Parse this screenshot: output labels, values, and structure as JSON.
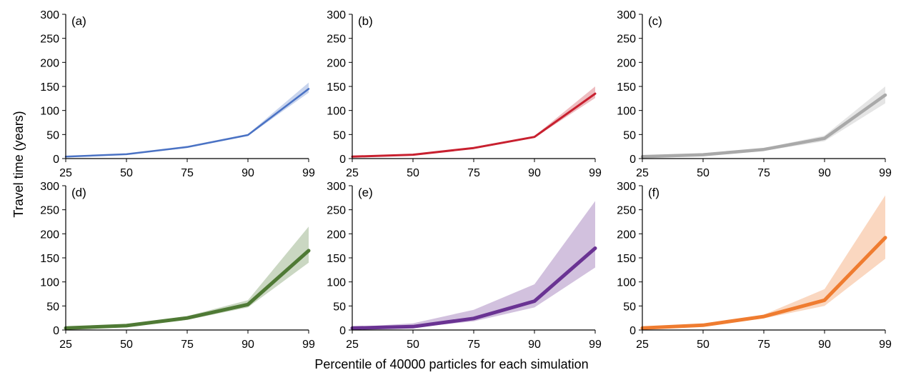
{
  "figure": {
    "ylabel": "Travel time (years)",
    "xlabel": "Percentile of 40000 particles for each simulation"
  },
  "chart_data": [
    {
      "type": "line",
      "panel": "(a)",
      "categories": [
        "25",
        "50",
        "75",
        "90",
        "99"
      ],
      "ylim": [
        0,
        300
      ],
      "yticks": [
        0,
        50,
        100,
        150,
        200,
        250,
        300
      ],
      "color": "#4a72c4",
      "series": [
        {
          "values": [
            4,
            9,
            24,
            49,
            145
          ]
        }
      ],
      "band_lower": [
        3,
        8,
        22,
        47,
        137
      ],
      "band_upper": [
        5,
        10,
        26,
        51,
        158
      ],
      "line_width": 2.5
    },
    {
      "type": "line",
      "panel": "(b)",
      "categories": [
        "25",
        "50",
        "75",
        "90",
        "99"
      ],
      "ylim": [
        0,
        300
      ],
      "yticks": [
        0,
        50,
        100,
        150,
        200,
        250,
        300
      ],
      "color": "#c8202f",
      "series": [
        {
          "values": [
            4,
            8,
            22,
            45,
            135
          ]
        }
      ],
      "band_lower": [
        3,
        7,
        20,
        43,
        126
      ],
      "band_upper": [
        5,
        9,
        24,
        47,
        150
      ],
      "line_width": 3
    },
    {
      "type": "line",
      "panel": "(c)",
      "categories": [
        "25",
        "50",
        "75",
        "90",
        "99"
      ],
      "ylim": [
        0,
        300
      ],
      "yticks": [
        0,
        50,
        100,
        150,
        200,
        250,
        300
      ],
      "color": "#a9a9a9",
      "series": [
        {
          "values": [
            4,
            8,
            19,
            42,
            132
          ]
        }
      ],
      "band_lower": [
        2,
        6,
        16,
        36,
        115
      ],
      "band_upper": [
        6,
        10,
        22,
        48,
        150
      ],
      "line_width": 4.5
    },
    {
      "type": "line",
      "panel": "(d)",
      "categories": [
        "25",
        "50",
        "75",
        "90",
        "99"
      ],
      "ylim": [
        0,
        300
      ],
      "yticks": [
        0,
        50,
        100,
        150,
        200,
        250,
        300
      ],
      "color": "#4f7a35",
      "series": [
        {
          "values": [
            4,
            9,
            25,
            53,
            165
          ]
        }
      ],
      "band_lower": [
        3,
        7,
        21,
        47,
        140
      ],
      "band_upper": [
        6,
        11,
        29,
        62,
        215
      ],
      "line_width": 5
    },
    {
      "type": "line",
      "panel": "(e)",
      "categories": [
        "25",
        "50",
        "75",
        "90",
        "99"
      ],
      "ylim": [
        0,
        300
      ],
      "yticks": [
        0,
        50,
        100,
        150,
        200,
        250,
        300
      ],
      "color": "#6a3393",
      "series": [
        {
          "values": [
            4,
            7,
            24,
            60,
            170
          ]
        }
      ],
      "band_lower": [
        3,
        5,
        18,
        47,
        130
      ],
      "band_upper": [
        6,
        14,
        42,
        95,
        268
      ],
      "line_width": 5
    },
    {
      "type": "line",
      "panel": "(f)",
      "categories": [
        "25",
        "50",
        "75",
        "90",
        "99"
      ],
      "ylim": [
        0,
        300
      ],
      "yticks": [
        0,
        50,
        100,
        150,
        200,
        250,
        300
      ],
      "color": "#ef7c30",
      "series": [
        {
          "values": [
            4,
            10,
            28,
            62,
            192
          ]
        }
      ],
      "band_lower": [
        3,
        8,
        24,
        50,
        148
      ],
      "band_upper": [
        6,
        12,
        32,
        85,
        280
      ],
      "line_width": 5
    }
  ]
}
